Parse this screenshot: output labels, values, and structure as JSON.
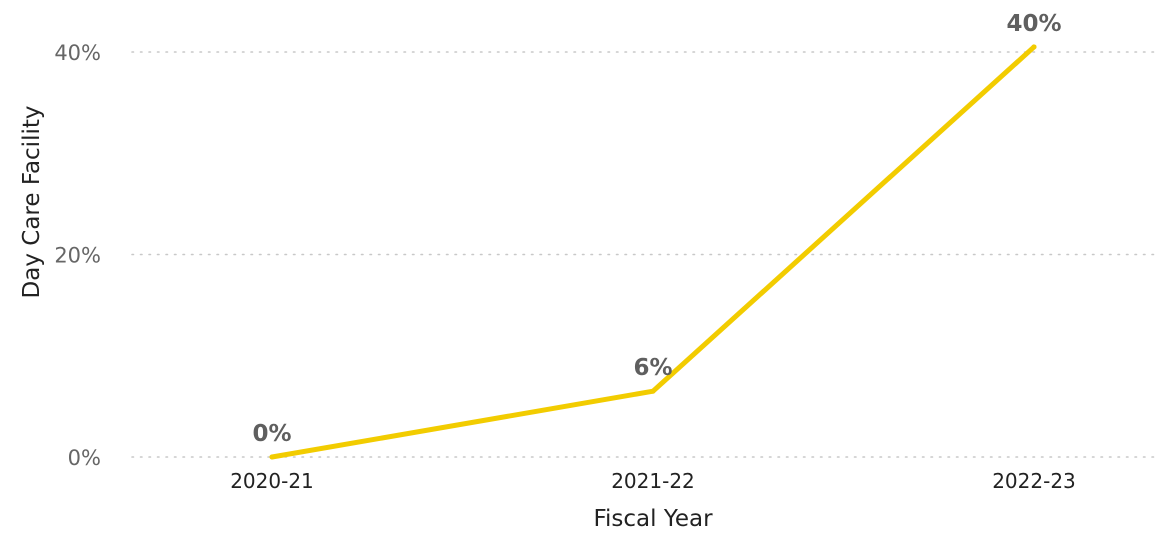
{
  "chart_data": {
    "type": "line",
    "categories": [
      "2020-21",
      "2021-22",
      "2022-23"
    ],
    "series": [
      {
        "values": [
          0,
          6.5,
          40.5
        ],
        "data_labels": [
          "0%",
          "6%",
          "40%"
        ],
        "color": "#F2CC00"
      }
    ],
    "xlabel": "Fiscal Year",
    "ylabel": "Day Care Facility",
    "ylim": [
      0,
      40
    ],
    "y_ticks": [
      {
        "value": 0,
        "label": "0%"
      },
      {
        "value": 20,
        "label": "20%"
      },
      {
        "value": 40,
        "label": "40%"
      }
    ],
    "grid": true,
    "grid_style": "dotted",
    "legend": "none"
  }
}
